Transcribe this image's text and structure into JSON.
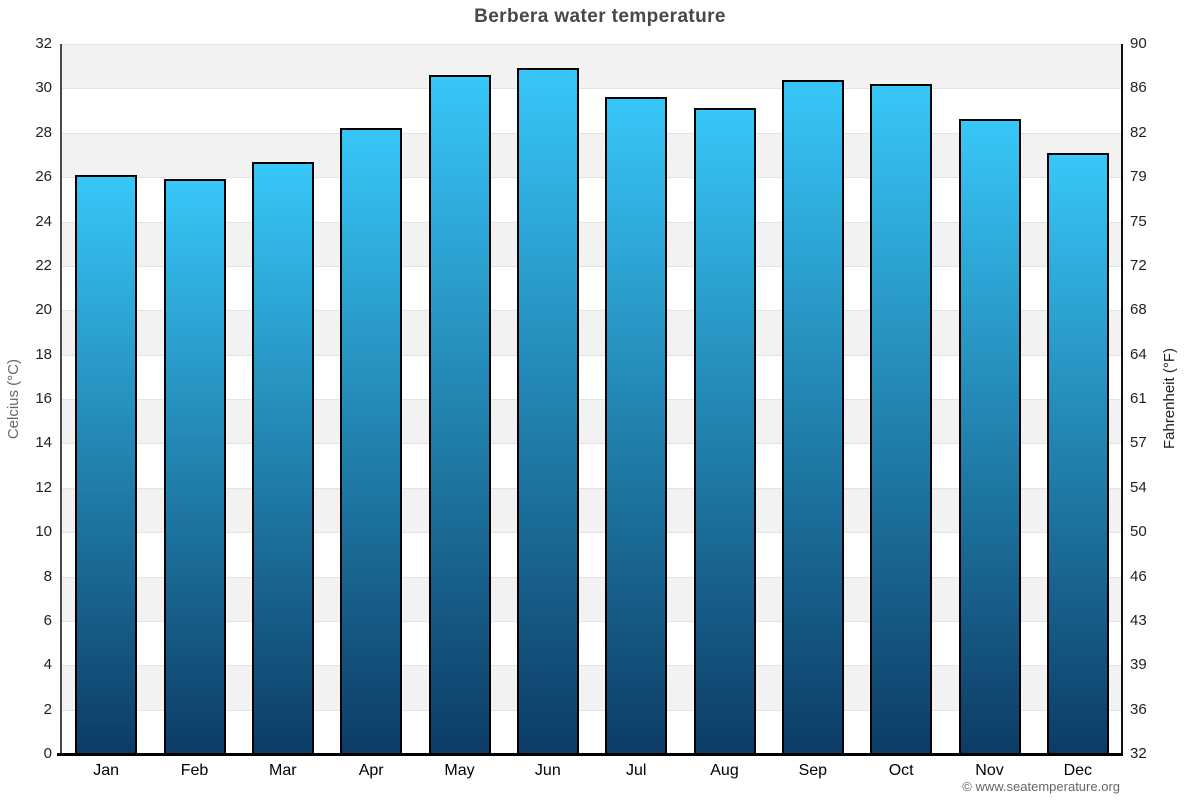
{
  "copyright": "© www.seatemperature.org",
  "chart_data": {
    "type": "bar",
    "title": "Berbera water temperature",
    "categories": [
      "Jan",
      "Feb",
      "Mar",
      "Apr",
      "May",
      "Jun",
      "Jul",
      "Aug",
      "Sep",
      "Oct",
      "Nov",
      "Dec"
    ],
    "values": [
      26.1,
      25.9,
      26.7,
      28.2,
      30.6,
      30.9,
      29.6,
      29.1,
      30.4,
      30.2,
      28.6,
      27.1
    ],
    "series_name": "Water temperature",
    "xlabel": "",
    "ylabel_left": "Celcius (°C)",
    "ylabel_right": "Fahrenheit (°F)",
    "ylim": [
      0,
      32
    ],
    "ytick_step_celsius": 2,
    "yticks_celsius": [
      "32",
      "30",
      "28",
      "26",
      "24",
      "22",
      "20",
      "18",
      "16",
      "14",
      "12",
      "10",
      "8",
      "6",
      "4",
      "2",
      "0"
    ],
    "yticks_fahrenheit": [
      "90",
      "86",
      "82",
      "79",
      "75",
      "72",
      "68",
      "64",
      "61",
      "57",
      "54",
      "50",
      "46",
      "43",
      "39",
      "36",
      "32"
    ],
    "legend": "none",
    "grid": "horizontal-bands-alternating",
    "colors": {
      "bar_gradient_top": "#37c7f8",
      "bar_gradient_bottom": "#0c3c65",
      "bar_border": "#000000",
      "band_gray": "#f2f2f2",
      "band_white": "#ffffff",
      "gridline": "#e3e3e3",
      "title_text": "#474747",
      "tick_text": "#222222",
      "left_axis_title_text": "#666666",
      "credit_text": "#666666"
    }
  }
}
